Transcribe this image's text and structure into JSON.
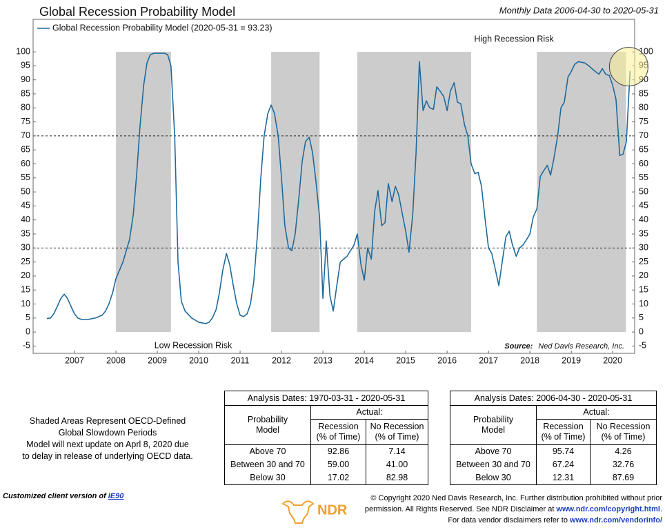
{
  "chart_data": {
    "type": "line",
    "title": "Global Recession Probability Model",
    "subtitle": "Monthly Data 2006-04-30 to 2020-05-31",
    "x": [
      2006.33,
      2006.42,
      2006.5,
      2006.58,
      2006.67,
      2006.75,
      2006.83,
      2006.92,
      2007.0,
      2007.08,
      2007.17,
      2007.33,
      2007.5,
      2007.67,
      2007.75,
      2007.83,
      2007.92,
      2008.0,
      2008.17,
      2008.33,
      2008.42,
      2008.5,
      2008.58,
      2008.67,
      2008.75,
      2008.83,
      2008.92,
      2009.17,
      2009.25,
      2009.33,
      2009.42,
      2009.5,
      2009.58,
      2009.67,
      2009.83,
      2010.0,
      2010.17,
      2010.25,
      2010.33,
      2010.42,
      2010.5,
      2010.58,
      2010.67,
      2010.75,
      2010.83,
      2010.92,
      2011.0,
      2011.08,
      2011.17,
      2011.25,
      2011.33,
      2011.42,
      2011.5,
      2011.58,
      2011.67,
      2011.75,
      2011.83,
      2011.92,
      2012.0,
      2012.08,
      2012.17,
      2012.25,
      2012.33,
      2012.42,
      2012.5,
      2012.58,
      2012.67,
      2012.75,
      2012.83,
      2012.92,
      2013.0,
      2013.08,
      2013.17,
      2013.25,
      2013.33,
      2013.42,
      2013.58,
      2013.75,
      2013.83,
      2013.92,
      2014.0,
      2014.08,
      2014.17,
      2014.25,
      2014.33,
      2014.42,
      2014.5,
      2014.58,
      2014.67,
      2014.75,
      2014.83,
      2014.92,
      2015.0,
      2015.08,
      2015.17,
      2015.25,
      2015.33,
      2015.42,
      2015.5,
      2015.58,
      2015.67,
      2015.75,
      2015.83,
      2015.92,
      2016.0,
      2016.08,
      2016.17,
      2016.25,
      2016.33,
      2016.42,
      2016.5,
      2016.58,
      2016.67,
      2016.75,
      2016.83,
      2016.92,
      2017.0,
      2017.08,
      2017.17,
      2017.25,
      2017.33,
      2017.42,
      2017.5,
      2017.58,
      2017.67,
      2017.75,
      2017.83,
      2017.92,
      2018.0,
      2018.08,
      2018.17,
      2018.25,
      2018.33,
      2018.42,
      2018.5,
      2018.58,
      2018.67,
      2018.75,
      2018.83,
      2018.92,
      2019.0,
      2019.08,
      2019.17,
      2019.33,
      2019.42,
      2019.5,
      2019.58,
      2019.67,
      2019.75,
      2019.83,
      2019.92,
      2020.0,
      2020.08,
      2020.17,
      2020.25,
      2020.33,
      2020.42
    ],
    "series": [
      {
        "name": "Global Recession Probability Model (2020-05-31 = 93.23)",
        "color": "#1e6a9c",
        "values": [
          4.8,
          5,
          6.5,
          9,
          12,
          13.5,
          12,
          9,
          6.5,
          5,
          4.5,
          4.5,
          5,
          6,
          7.5,
          10,
          14,
          19,
          25,
          33,
          42,
          56,
          73,
          88,
          96,
          99,
          99.5,
          99.5,
          99,
          95,
          70,
          25,
          11,
          7.5,
          5,
          3.5,
          3,
          3.5,
          5,
          8,
          14,
          22,
          28,
          24,
          17,
          10,
          6,
          5.5,
          6.5,
          10,
          18,
          35,
          55,
          70,
          78,
          81,
          78,
          70,
          55,
          38,
          30,
          29,
          35,
          48,
          61,
          68,
          69.5,
          64,
          54,
          41,
          12,
          32.5,
          13,
          7.5,
          16,
          25,
          27,
          31,
          35,
          24,
          18.5,
          30,
          26,
          43,
          50.5,
          38,
          39,
          53,
          46.5,
          52,
          49,
          42,
          36,
          28.5,
          42,
          64,
          96.5,
          79,
          82.5,
          80,
          79.5,
          87.5,
          86,
          84,
          79,
          86,
          89,
          82,
          81.5,
          74,
          70,
          60,
          56.5,
          57,
          52,
          40,
          30,
          28,
          22,
          16.5,
          25,
          34,
          36,
          31,
          27,
          30,
          31,
          33,
          35,
          41,
          44,
          55.5,
          57.5,
          59.5,
          56,
          62,
          70,
          80,
          82,
          91,
          93,
          95.5,
          96.5,
          96,
          95,
          94,
          93,
          92,
          94,
          92,
          91.5,
          88,
          83,
          63,
          63.5,
          68,
          93.23
        ]
      }
    ],
    "shaded_regions": [
      [
        2008.0,
        2009.33
      ],
      [
        2011.75,
        2012.92
      ],
      [
        2013.83,
        2016.58
      ],
      [
        2018.17,
        2020.32
      ]
    ],
    "shade_color": "#cccccc",
    "reference_lines": [
      70,
      30
    ],
    "xlim": [
      2006.0,
      2020.53
    ],
    "xticks": [
      2007,
      2008,
      2009,
      2010,
      2011,
      2012,
      2013,
      2014,
      2015,
      2016,
      2017,
      2018,
      2019,
      2020
    ],
    "ylim": [
      -7.6,
      111.6
    ],
    "yticks": [
      -5,
      0,
      5,
      10,
      15,
      20,
      25,
      30,
      35,
      40,
      45,
      50,
      55,
      60,
      65,
      70,
      75,
      80,
      85,
      90,
      95,
      100
    ],
    "annotations": {
      "high": "High Recession Risk",
      "low": "Low Recession Risk",
      "source_label": "Source:",
      "source": "Ned Davis Research, Inc."
    }
  },
  "notes": [
    "Shaded Areas Represent OECD-Defined",
    "Global Slowdown Periods",
    "Model will next update on Aprl 8, 2020 due",
    "to delay in release of underlying OECD data."
  ],
  "tables": [
    {
      "title": "Analysis Dates: 1970-03-31 - 2020-05-31",
      "group": "Actual:",
      "columns": [
        [
          "Probability",
          "Model"
        ],
        [
          "Recession",
          "(% of Time)"
        ],
        [
          "No Recession",
          "(% of Time)"
        ]
      ],
      "rows": [
        [
          "Above 70",
          "92.86",
          "7.14"
        ],
        [
          "Between 30 and 70",
          "59.00",
          "41.00"
        ],
        [
          "Below 30",
          "17.02",
          "82.98"
        ]
      ]
    },
    {
      "title": "Analysis Dates: 2006-04-30 - 2020-05-31",
      "group": "Actual:",
      "columns": [
        [
          "Probability",
          "Model"
        ],
        [
          "Recession",
          "(% of Time)"
        ],
        [
          "No Recession",
          "(% of Time)"
        ]
      ],
      "rows": [
        [
          "Above 70",
          "95.74",
          "4.26"
        ],
        [
          "Between 30 and 70",
          "67.24",
          "32.76"
        ],
        [
          "Below 30",
          "12.31",
          "87.69"
        ]
      ]
    }
  ],
  "footer": {
    "client": "Customized client version of",
    "client_link": "IE90",
    "logo": "NDR",
    "copyright": [
      [
        "© Copyright 2020 Ned Davis Research, Inc. Further distribution prohibited without prior"
      ],
      [
        "permission. All Rights Reserved. See NDR Disclaimer at",
        "www.ndr.com/copyright.html",
        "."
      ],
      [
        "For data vendor disclaimers refer to",
        "www.ndr.com/vendorinfo/"
      ]
    ]
  }
}
